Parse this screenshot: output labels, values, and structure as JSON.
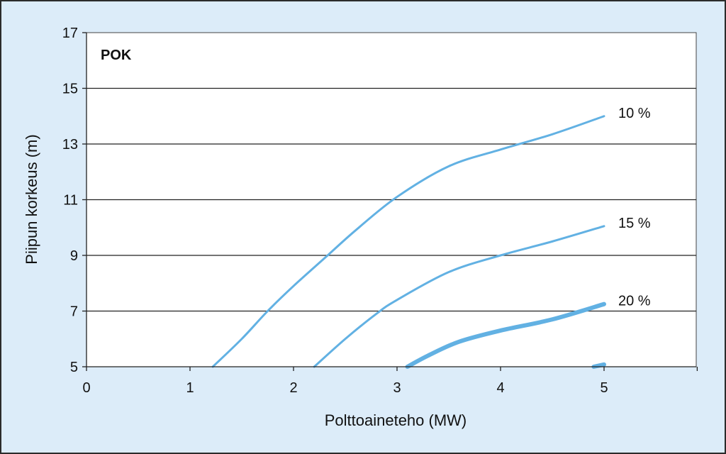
{
  "chart_data": {
    "type": "line",
    "title": "",
    "plot_label": "POK",
    "xlabel": "Polttoaineteho (MW)",
    "ylabel": "Piipun korkeus (m)",
    "xlim": [
      0,
      6
    ],
    "ylim": [
      5,
      17
    ],
    "xticks": [
      "0",
      "1",
      "2",
      "3",
      "4",
      "5"
    ],
    "yticks": [
      "5",
      "7",
      "9",
      "11",
      "13",
      "15",
      "17"
    ],
    "grid": "horizontal",
    "line_color": "#62b1e3",
    "series": [
      {
        "name": "10 %",
        "width": "normal",
        "x": [
          1.22,
          1.5,
          1.75,
          2.0,
          2.3,
          2.6,
          3.0,
          3.5,
          4.0,
          4.5,
          5.0
        ],
        "y": [
          5.0,
          6.0,
          7.0,
          7.9,
          8.9,
          9.9,
          11.1,
          12.2,
          12.8,
          13.35,
          14.0
        ]
      },
      {
        "name": "15 %",
        "width": "normal",
        "x": [
          2.2,
          2.5,
          2.8,
          3.0,
          3.5,
          4.0,
          4.5,
          5.0
        ],
        "y": [
          5.0,
          6.0,
          6.9,
          7.4,
          8.4,
          9.0,
          9.5,
          10.05
        ]
      },
      {
        "name": "20 %",
        "width": "thick",
        "x": [
          3.1,
          3.3,
          3.6,
          4.0,
          4.5,
          5.0
        ],
        "y": [
          5.0,
          5.4,
          5.9,
          6.3,
          6.7,
          7.25
        ]
      },
      {
        "name": "",
        "width": "thick",
        "x": [
          4.9,
          5.0
        ],
        "y": [
          5.0,
          5.08
        ]
      }
    ]
  }
}
